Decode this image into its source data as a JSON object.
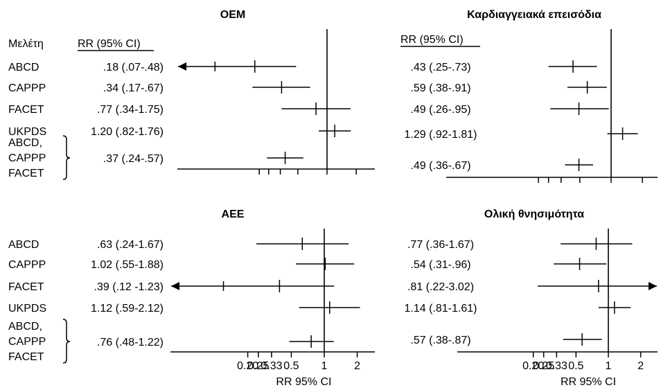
{
  "chart_data": {
    "type": "forest",
    "axis": {
      "scale": "log",
      "ticks": [
        "0.20",
        "0.25",
        "0.33",
        "0.5",
        "1",
        "2"
      ],
      "label": "RR 95% CI"
    },
    "headers": {
      "study": "Μελέτη",
      "rr": "RR (95% CI)"
    },
    "panels": [
      {
        "id": "p1",
        "title": "OEM",
        "show_study_names": true,
        "show_axis_labels": false,
        "rows": [
          {
            "study": "ABCD",
            "label": ".18 (.07-.48)",
            "rr": 0.18,
            "lo": 0.07,
            "hi": 0.48,
            "arrow_left": true,
            "arrow_right": false
          },
          {
            "study": "CAPPP",
            "label": ".34 (.17-.67)",
            "rr": 0.34,
            "lo": 0.17,
            "hi": 0.67,
            "arrow_left": false,
            "arrow_right": false
          },
          {
            "study": "FACET",
            "label": ".77 (.34-1.75)",
            "rr": 0.77,
            "lo": 0.34,
            "hi": 1.75,
            "arrow_left": false,
            "arrow_right": false
          },
          {
            "study": "UKPDS",
            "label": "1.20 (.82-1.76)",
            "rr": 1.2,
            "lo": 0.82,
            "hi": 1.76,
            "arrow_left": false,
            "arrow_right": false
          },
          {
            "study": "ABCD,\nCAPPP\nFACET",
            "label": ".37 (.24-.57)",
            "rr": 0.37,
            "lo": 0.24,
            "hi": 0.57,
            "arrow_left": false,
            "arrow_right": false,
            "pooled": true
          }
        ]
      },
      {
        "id": "p2",
        "title": "Καρδιαγγειακά επεισόδια",
        "show_study_names": false,
        "show_axis_labels": false,
        "rows": [
          {
            "label": ".43 (.25-.73)",
            "rr": 0.43,
            "lo": 0.25,
            "hi": 0.73,
            "arrow_left": false,
            "arrow_right": false
          },
          {
            "label": ".59 (.38-.91)",
            "rr": 0.59,
            "lo": 0.38,
            "hi": 0.91,
            "arrow_left": false,
            "arrow_right": false
          },
          {
            "label": ".49 (.26-.95)",
            "rr": 0.49,
            "lo": 0.26,
            "hi": 0.95,
            "arrow_left": false,
            "arrow_right": false
          },
          {
            "label": "1.29 (.92-1.81)",
            "rr": 1.29,
            "lo": 0.92,
            "hi": 1.81,
            "arrow_left": false,
            "arrow_right": false
          },
          {
            "label": ".49 (.36-.67)",
            "rr": 0.49,
            "lo": 0.36,
            "hi": 0.67,
            "arrow_left": false,
            "arrow_right": false
          }
        ]
      },
      {
        "id": "p3",
        "title": "AEE",
        "show_study_names": true,
        "show_axis_labels": true,
        "rows": [
          {
            "study": "ABCD",
            "label": ".63 (.24-1.67)",
            "rr": 0.63,
            "lo": 0.24,
            "hi": 1.67,
            "arrow_left": false,
            "arrow_right": false
          },
          {
            "study": "CAPPP",
            "label": "1.02 (.55-1.88)",
            "rr": 1.02,
            "lo": 0.55,
            "hi": 1.88,
            "arrow_left": false,
            "arrow_right": false
          },
          {
            "study": "FACET",
            "label": ".39 (.12 -1.23)",
            "rr": 0.39,
            "lo": 0.12,
            "hi": 1.23,
            "arrow_left": true,
            "arrow_right": false
          },
          {
            "study": "UKPDS",
            "label": "1.12 (.59-2.12)",
            "rr": 1.12,
            "lo": 0.59,
            "hi": 2.12,
            "arrow_left": false,
            "arrow_right": false
          },
          {
            "study": "ABCD,\nCAPPP\nFACET",
            "label": ".76 (.48-1.22)",
            "rr": 0.76,
            "lo": 0.48,
            "hi": 1.22,
            "arrow_left": false,
            "arrow_right": false,
            "pooled": true
          }
        ]
      },
      {
        "id": "p4",
        "title": "Ολική θνησιμότητα",
        "show_study_names": false,
        "show_axis_labels": true,
        "rows": [
          {
            "label": ".77 (.36-1.67)",
            "rr": 0.77,
            "lo": 0.36,
            "hi": 1.67,
            "arrow_left": false,
            "arrow_right": false
          },
          {
            "label": ".54 (.31-.96)",
            "rr": 0.54,
            "lo": 0.31,
            "hi": 0.96,
            "arrow_left": false,
            "arrow_right": false
          },
          {
            "label": ".81 (.22-3.02)",
            "rr": 0.81,
            "lo": 0.22,
            "hi": 3.02,
            "arrow_left": false,
            "arrow_right": true
          },
          {
            "label": "1.14 (.81-1.61)",
            "rr": 1.14,
            "lo": 0.81,
            "hi": 1.61,
            "arrow_left": false,
            "arrow_right": false
          },
          {
            "label": ".57 (.38-.87)",
            "rr": 0.57,
            "lo": 0.38,
            "hi": 0.87,
            "arrow_left": false,
            "arrow_right": false
          }
        ]
      }
    ]
  }
}
